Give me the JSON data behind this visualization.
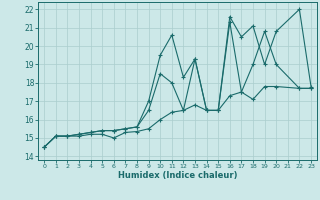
{
  "xlabel": "Humidex (Indice chaleur)",
  "background_color": "#cce8e8",
  "grid_color": "#aacece",
  "line_color": "#1a6b6b",
  "xlim": [
    -0.5,
    23.5
  ],
  "ylim": [
    13.8,
    22.4
  ],
  "xticks": [
    0,
    1,
    2,
    3,
    4,
    5,
    6,
    7,
    8,
    9,
    10,
    11,
    12,
    13,
    14,
    15,
    16,
    17,
    18,
    19,
    20,
    21,
    22,
    23
  ],
  "yticks": [
    14,
    15,
    16,
    17,
    18,
    19,
    20,
    21,
    22
  ],
  "line1": {
    "x": [
      0,
      1,
      2,
      3,
      4,
      5,
      6,
      7,
      8,
      9,
      10,
      11,
      12,
      13,
      14,
      15,
      16,
      17,
      18,
      19,
      20,
      22,
      23
    ],
    "y": [
      14.5,
      15.1,
      15.1,
      15.1,
      15.2,
      15.2,
      15.0,
      15.3,
      15.35,
      15.5,
      16.0,
      16.4,
      16.5,
      16.8,
      16.5,
      16.5,
      17.3,
      17.5,
      17.1,
      17.8,
      17.8,
      17.7,
      17.7
    ]
  },
  "line2": {
    "x": [
      0,
      1,
      2,
      3,
      4,
      5,
      6,
      7,
      8,
      9,
      10,
      11,
      12,
      13,
      14,
      15,
      16,
      17,
      18,
      19,
      20,
      22,
      23
    ],
    "y": [
      14.5,
      15.1,
      15.1,
      15.2,
      15.3,
      15.4,
      15.4,
      15.5,
      15.6,
      17.0,
      19.5,
      20.6,
      18.3,
      19.3,
      16.5,
      16.5,
      21.3,
      17.5,
      19.0,
      20.8,
      19.0,
      17.7,
      17.7
    ]
  },
  "line3": {
    "x": [
      0,
      1,
      2,
      3,
      4,
      5,
      6,
      7,
      8,
      9,
      10,
      11,
      12,
      13,
      14,
      15,
      16,
      17,
      18,
      19,
      20,
      22,
      23
    ],
    "y": [
      14.5,
      15.1,
      15.1,
      15.2,
      15.3,
      15.4,
      15.4,
      15.5,
      15.6,
      16.5,
      18.5,
      18.0,
      16.5,
      19.3,
      16.5,
      16.5,
      21.6,
      20.5,
      21.1,
      19.0,
      20.8,
      22.0,
      17.8
    ]
  }
}
